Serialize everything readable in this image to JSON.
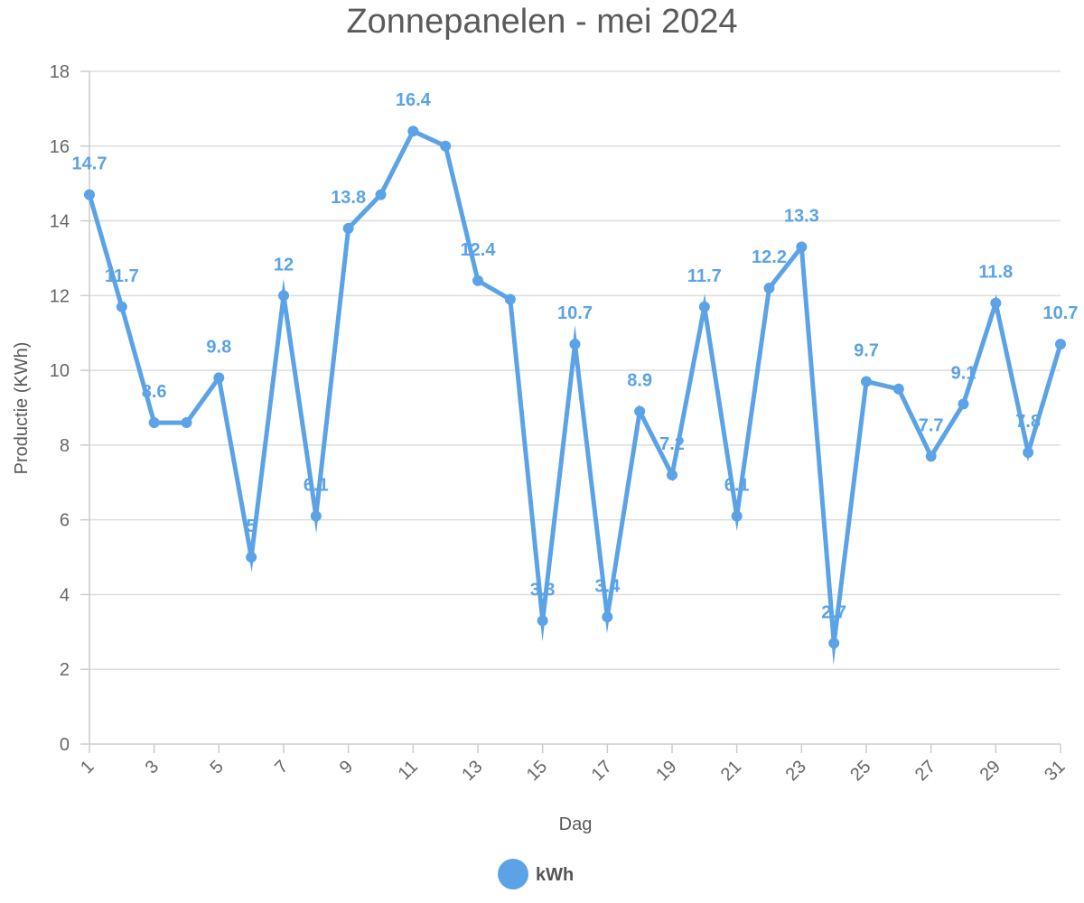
{
  "chart_data": {
    "type": "line",
    "title": "Zonnepanelen - mei 2024",
    "xlabel": "Dag",
    "ylabel": "Productie (KWh)",
    "x": [
      1,
      2,
      3,
      4,
      5,
      6,
      7,
      8,
      9,
      10,
      11,
      12,
      13,
      14,
      15,
      16,
      17,
      18,
      19,
      20,
      21,
      22,
      23,
      24,
      25,
      26,
      27,
      28,
      29,
      30,
      31
    ],
    "x_tick_labels": [
      "1",
      "3",
      "5",
      "7",
      "9",
      "11",
      "13",
      "15",
      "17",
      "19",
      "21",
      "23",
      "25",
      "27",
      "29",
      "31"
    ],
    "ylim": [
      0,
      18
    ],
    "y_ticks": [
      0,
      2,
      4,
      6,
      8,
      10,
      12,
      14,
      16,
      18
    ],
    "grid": true,
    "legend_position": "bottom",
    "series": [
      {
        "name": "kWh",
        "color": "#5ba3e6",
        "values": [
          14.7,
          11.7,
          8.6,
          8.6,
          9.8,
          5,
          12,
          6.1,
          13.8,
          14.7,
          16.4,
          16,
          12.4,
          11.9,
          3.3,
          10.7,
          3.4,
          8.9,
          7.2,
          11.7,
          6.1,
          12.2,
          13.3,
          2.7,
          9.7,
          9.5,
          7.7,
          9.1,
          11.8,
          7.8,
          10.7
        ],
        "data_labels": [
          "14.7",
          "11.7",
          "8.6",
          "",
          "9.8",
          "5",
          "12",
          "6.1",
          "13.8",
          "",
          "16.4",
          "",
          "12.4",
          "",
          "3.3",
          "10.7",
          "3.4",
          "8.9",
          "7.2",
          "11.7",
          "6.1",
          "12.2",
          "13.3",
          "2.7",
          "9.7",
          "",
          "7.7",
          "9.1",
          "11.8",
          "7.8",
          "10.7"
        ]
      }
    ]
  }
}
